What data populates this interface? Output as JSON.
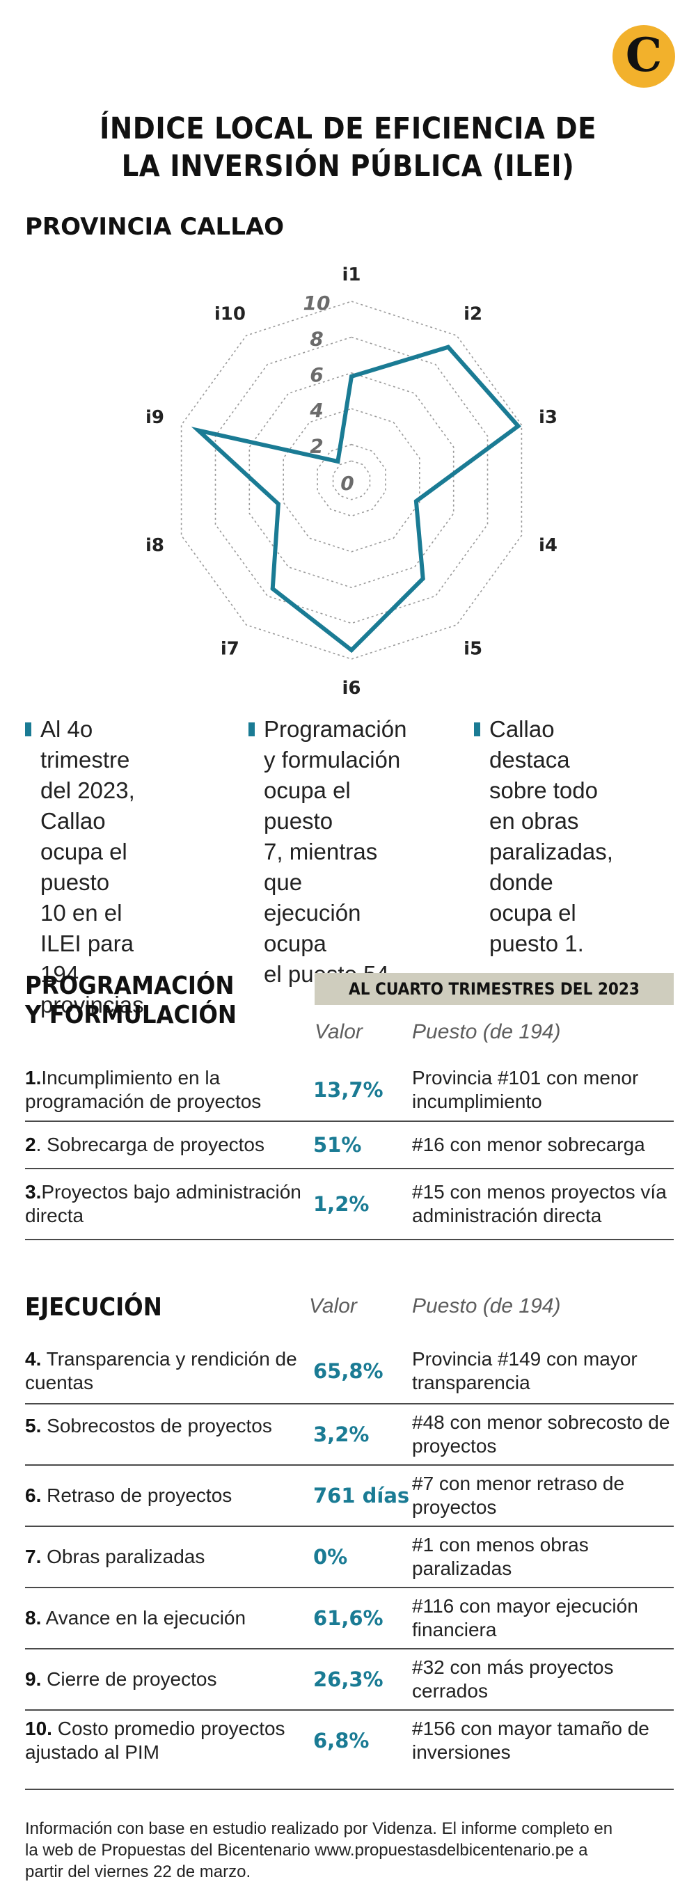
{
  "brand": {
    "logo_letter": "C",
    "logo_color": "#f2b12c",
    "accent": "#1a7b94"
  },
  "header": {
    "title_line1": "ÍNDICE LOCAL DE EFICIENCIA DE",
    "title_line2": "LA INVERSIÓN PÚBLICA (ILEI)",
    "subtitle": "PROVINCIA CALLAO"
  },
  "chart_data": {
    "type": "radar",
    "axes": [
      "i1",
      "i2",
      "i3",
      "i4",
      "i5",
      "i6",
      "i7",
      "i8",
      "i9",
      "i10"
    ],
    "scale_ticks": [
      "0",
      "2",
      "4",
      "6",
      "8",
      "10"
    ],
    "range": [
      0,
      10
    ],
    "series": [
      {
        "values": [
          5.8,
          9.2,
          9.8,
          3.8,
          6.8,
          9.5,
          7.5,
          4.3,
          9.0,
          1.3
        ]
      }
    ]
  },
  "bullets": [
    {
      "lines": [
        "Al 4o trimestre",
        "del 2023, Callao",
        "ocupa el puesto",
        "10 en el ILEI para",
        "194 provincias."
      ]
    },
    {
      "lines": [
        "Programación",
        "y formulación",
        "ocupa el puesto",
        "7, mientras que",
        "ejecución ocupa",
        "el puesto 54."
      ]
    },
    {
      "lines": [
        "Callao destaca",
        "sobre todo",
        "en obras",
        "paralizadas,",
        "donde ocupa el",
        "puesto 1."
      ]
    }
  ],
  "programacion": {
    "title_line1": "PROGRAMACIÓN",
    "title_line2": "Y FORMULACIÓN",
    "banner": "AL CUARTO TRIMESTRES DEL 2023",
    "col_valor": "Valor",
    "col_puesto": "Puesto (de 194)",
    "rows": [
      {
        "num": "1.",
        "label": "Incumplimiento en la programación de proyectos",
        "value": "13,7%",
        "rank": "Provincia #101 con menor incumplimiento"
      },
      {
        "num": "2",
        "label": ". Sobrecarga de proyectos",
        "value": "51%",
        "rank": "#16 con menor sobrecarga"
      },
      {
        "num": "3.",
        "label": "Proyectos bajo administración directa",
        "value": "1,2%",
        "rank": "#15 con menos proyectos vía administración directa"
      }
    ]
  },
  "ejecucion": {
    "title": "EJECUCIÓN",
    "col_valor": "Valor",
    "col_puesto": "Puesto (de 194)",
    "rows": [
      {
        "num": "4.",
        "label": "Transparencia y rendición de cuentas",
        "value": "65,8%",
        "rank": "Provincia #149 con mayor transparencia"
      },
      {
        "num": "5.",
        "label": "Sobrecostos de proyectos",
        "value": "3,2%",
        "rank": "#48 con menor sobrecosto de proyectos"
      },
      {
        "num": "6.",
        "label": "Retraso de proyectos",
        "value": "761 días",
        "rank": "#7 con menor retraso de proyectos"
      },
      {
        "num": "7.",
        "label": "Obras paralizadas",
        "value": "0%",
        "rank": "#1 con menos obras paralizadas"
      },
      {
        "num": "8.",
        "label": "Avance en la ejecución",
        "value": "61,6%",
        "rank": "#116 con mayor ejecución financiera"
      },
      {
        "num": "9.",
        "label": "Cierre de proyectos",
        "value": "26,3%",
        "rank": "#32 con más proyectos cerrados"
      },
      {
        "num": "10.",
        "label": "Costo promedio proyectos ajustado al PIM",
        "value": "6,8%",
        "rank": "#156 con mayor tamaño de inversiones"
      }
    ]
  },
  "footer": {
    "lines": [
      "Información con base en estudio realizado por Videnza. El informe completo en",
      "la web de Propuestas del Bicentenario www.propuestasdelbicentenario.pe a",
      "partir del viernes 22 de marzo."
    ]
  }
}
